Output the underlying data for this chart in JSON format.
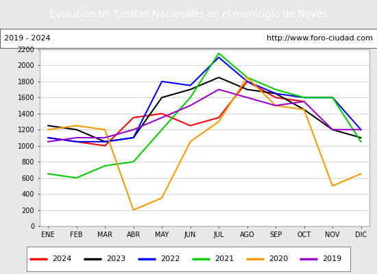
{
  "title": "Evolucion Nº Turistas Nacionales en el municipio de Novés",
  "subtitle_left": "2019 - 2024",
  "subtitle_right": "http://www.foro-ciudad.com",
  "title_bg_color": "#4472c4",
  "title_text_color": "#ffffff",
  "months": [
    "ENE",
    "FEB",
    "MAR",
    "ABR",
    "MAY",
    "JUN",
    "JUL",
    "AGO",
    "SEP",
    "OCT",
    "NOV",
    "DIC"
  ],
  "series_order": [
    "2024",
    "2023",
    "2022",
    "2021",
    "2020",
    "2019"
  ],
  "series": {
    "2024": {
      "color": "#ff0000",
      "data": [
        1100,
        1050,
        1000,
        1350,
        1400,
        1250,
        1350,
        1800,
        1600,
        1550,
        null,
        null
      ]
    },
    "2023": {
      "color": "#000000",
      "data": [
        1250,
        1200,
        1050,
        1100,
        1600,
        1700,
        1850,
        1700,
        1650,
        1450,
        1200,
        1100
      ]
    },
    "2022": {
      "color": "#0000ff",
      "data": [
        1100,
        1050,
        1050,
        1100,
        1800,
        1750,
        2100,
        1800,
        1650,
        1600,
        1600,
        1200
      ]
    },
    "2021": {
      "color": "#00cc00",
      "data": [
        650,
        600,
        750,
        800,
        1200,
        1600,
        2150,
        1850,
        1700,
        1600,
        1600,
        1050
      ]
    },
    "2020": {
      "color": "#ff9900",
      "data": [
        1200,
        1250,
        1200,
        200,
        350,
        1050,
        1300,
        1850,
        1500,
        1450,
        500,
        650
      ]
    },
    "2019": {
      "color": "#9900cc",
      "data": [
        1050,
        1100,
        1100,
        1200,
        1350,
        1500,
        1700,
        1600,
        1500,
        1550,
        1200,
        1200
      ]
    }
  },
  "ylim": [
    0,
    2200
  ],
  "yticks": [
    0,
    200,
    400,
    600,
    800,
    1000,
    1200,
    1400,
    1600,
    1800,
    2000,
    2200
  ],
  "bg_color": "#e8e8e8",
  "plot_bg_color": "#ffffff",
  "grid_color": "#cccccc",
  "border_color": "#4472c4",
  "title_fontsize": 10,
  "tick_fontsize": 7,
  "legend_fontsize": 8
}
